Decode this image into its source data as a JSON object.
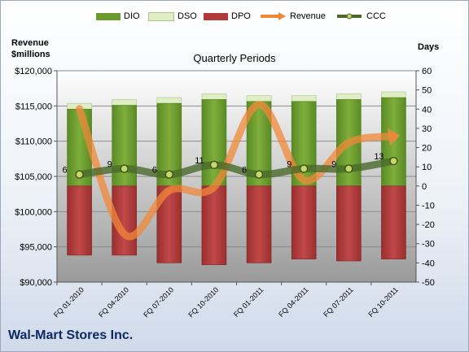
{
  "legend": {
    "dio": "DIO",
    "dso": "DSO",
    "dpo": "DPO",
    "revenue": "Revenue",
    "ccc": "CCC"
  },
  "headers": {
    "left_line1": "Revenue",
    "left_line2": "$millions",
    "right": "Days"
  },
  "company": "Wal-Mart Stores Inc.",
  "colors": {
    "dio": "#6b9a2e",
    "dso": "#dfeec5",
    "dpo": "#b03a3a",
    "revenue": "#f0883a",
    "ccc": "#4a6a2a",
    "plot_bg_top": "#ffffff",
    "plot_bg_bottom": "#9a9a9a"
  },
  "chart_data": {
    "type": "bar",
    "title": "Quarterly Periods",
    "categories": [
      "FQ 01-2010",
      "FQ 04-2010",
      "FQ 07-2010",
      "FQ 10-2010",
      "FQ 01-2011",
      "FQ 04-2011",
      "FQ 07-2011",
      "FQ 10-2011"
    ],
    "ylabel_left": "Revenue\n$millions",
    "ylabel_right": "Days",
    "ylim_left": [
      90000,
      120000
    ],
    "yticks_left": [
      "$90,000",
      "$95,000",
      "$100,000",
      "$105,000",
      "$110,000",
      "$115,000",
      "$120,000"
    ],
    "ylim_right": [
      -50,
      60
    ],
    "yticks_right": [
      "-50",
      "-40",
      "-30",
      "-20",
      "-10",
      "0",
      "10",
      "20",
      "30",
      "40",
      "50",
      "60"
    ],
    "series": [
      {
        "name": "DIO",
        "type": "stacked_bar",
        "axis": "right",
        "values": [
          40,
          42,
          43,
          45,
          44,
          44,
          45,
          46
        ]
      },
      {
        "name": "DSO",
        "type": "stacked_bar",
        "axis": "right",
        "values": [
          3,
          3,
          3,
          3,
          3,
          3,
          3,
          3
        ]
      },
      {
        "name": "DPO",
        "type": "stacked_bar_negative",
        "axis": "right",
        "values": [
          -36,
          -36,
          -40,
          -41,
          -40,
          -38,
          -39,
          -38
        ]
      },
      {
        "name": "Revenue",
        "type": "line",
        "axis": "left",
        "values": [
          114600,
          96800,
          103000,
          103500,
          115200,
          104500,
          109800,
          110700
        ]
      },
      {
        "name": "CCC",
        "type": "line",
        "axis": "right",
        "values": [
          6,
          9,
          6,
          11,
          6,
          9,
          9,
          13
        ],
        "labels": [
          "6",
          "9",
          "6",
          "11",
          "6",
          "9",
          "9",
          "13"
        ]
      }
    ],
    "grid": true,
    "legend_position": "top"
  }
}
